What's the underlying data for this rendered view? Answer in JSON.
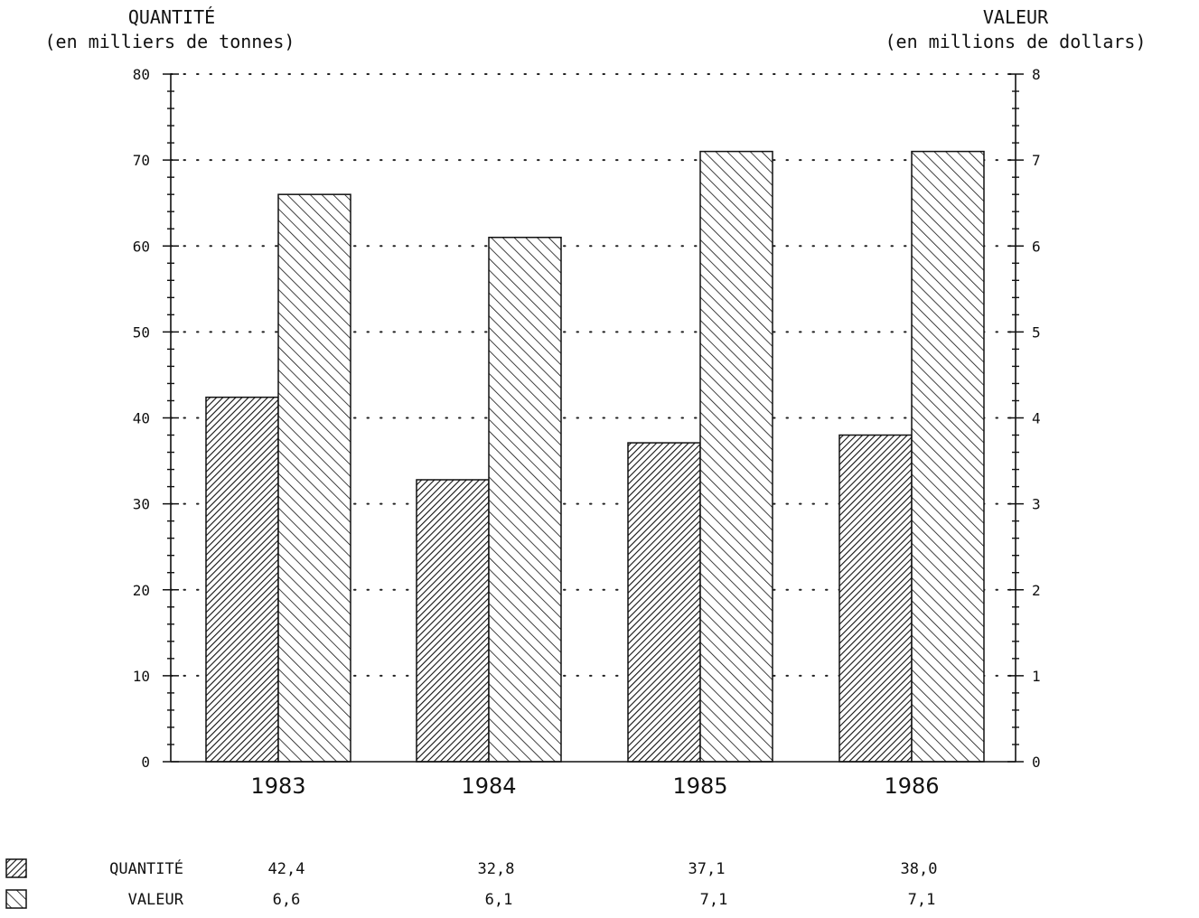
{
  "chart_data": {
    "type": "bar",
    "categories": [
      "1983",
      "1984",
      "1985",
      "1986"
    ],
    "series": [
      {
        "name": "QUANTITÉ",
        "values": [
          42.4,
          32.8,
          37.1,
          38.0
        ],
        "axis": "left",
        "pattern": "dense-diagonal-up"
      },
      {
        "name": "VALEUR",
        "values": [
          6.6,
          6.1,
          7.1,
          7.1
        ],
        "axis": "right",
        "pattern": "diagonal-down"
      }
    ],
    "left_axis": {
      "title_line1": "QUANTITÉ",
      "title_line2": "(en milliers de tonnes)",
      "ylim": [
        0,
        80
      ],
      "ticks": [
        "0",
        "10",
        "20",
        "30",
        "40",
        "50",
        "60",
        "70",
        "80"
      ]
    },
    "right_axis": {
      "title_line1": "VALEUR",
      "title_line2": "(en millions de dollars)",
      "ylim": [
        0,
        8
      ],
      "ticks": [
        "0",
        "1",
        "2",
        "3",
        "4",
        "5",
        "6",
        "7",
        "8"
      ]
    },
    "grid": "dotted-horizontal",
    "legend_table": {
      "rows": [
        {
          "label": "QUANTITÉ",
          "values": [
            "42,4",
            "32,8",
            "37,1",
            "38,0"
          ]
        },
        {
          "label": "VALEUR",
          "values": [
            "6,6",
            "6,1",
            "7,1",
            "7,1"
          ]
        }
      ]
    },
    "colors": {
      "ink": "#111111",
      "background": "#ffffff"
    }
  }
}
